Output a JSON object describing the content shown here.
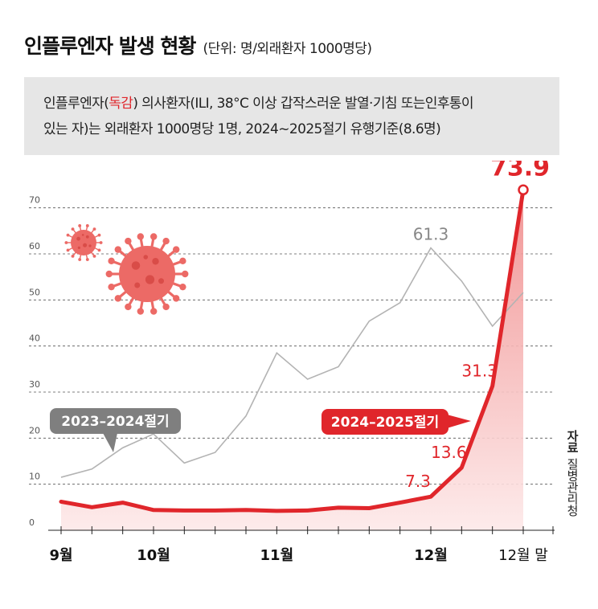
{
  "header": {
    "title": "인플루엔자 발생 현황",
    "unit": "(단위: 명/외래환자 1000명당)"
  },
  "note": {
    "line1_before": "인플루엔자(",
    "line1_highlight": "독감",
    "line1_after": ") 의사환자(ILI, 38°C 이상 갑작스러운 발열·기침 또는인후통이",
    "line2": "있는 자)는 외래환자 1000명당 1명, 2024~2025절기 유행기준(8.6명)"
  },
  "source": {
    "label": "자료",
    "org": "질병관리청"
  },
  "colors": {
    "current": "#e0262b",
    "previous": "#b3b3b3",
    "previous_label_bg": "#7f7f7f",
    "area_top": "#f08a8a",
    "area_bottom": "#fde9e9",
    "note_bg": "#e6e6e6"
  },
  "chart_data": {
    "type": "line",
    "ylim": [
      0,
      75
    ],
    "yticks": [
      "0",
      "10",
      "20",
      "30",
      "40",
      "50",
      "60",
      "70"
    ],
    "grid": true,
    "x_ticks": [
      {
        "label": "9월",
        "index": 0
      },
      {
        "label": "10월",
        "index": 3
      },
      {
        "label": "11월",
        "index": 7
      },
      {
        "label": "12월",
        "index": 12
      },
      {
        "label": "12월 말",
        "index": 15
      }
    ],
    "series": [
      {
        "name": "2024–2025절기",
        "values": [
          6.2,
          5.0,
          6.0,
          4.4,
          4.3,
          4.3,
          4.4,
          4.2,
          4.3,
          4.9,
          4.8,
          6.0,
          7.3,
          13.6,
          31.3,
          73.9
        ],
        "labels": [
          {
            "index": 12,
            "text": "7.3"
          },
          {
            "index": 13,
            "text": "13.6"
          },
          {
            "index": 14,
            "text": "31.3"
          },
          {
            "index": 15,
            "text": "73.9"
          }
        ]
      },
      {
        "name": "2023–2024절기",
        "values": [
          11.5,
          13.3,
          17.9,
          20.9,
          14.6,
          16.9,
          24.8,
          38.5,
          32.8,
          35.5,
          45.4,
          49.4,
          61.3,
          54.1,
          44.3,
          51.6
        ],
        "labels": [
          {
            "index": 12,
            "text": "61.3"
          }
        ]
      }
    ]
  }
}
